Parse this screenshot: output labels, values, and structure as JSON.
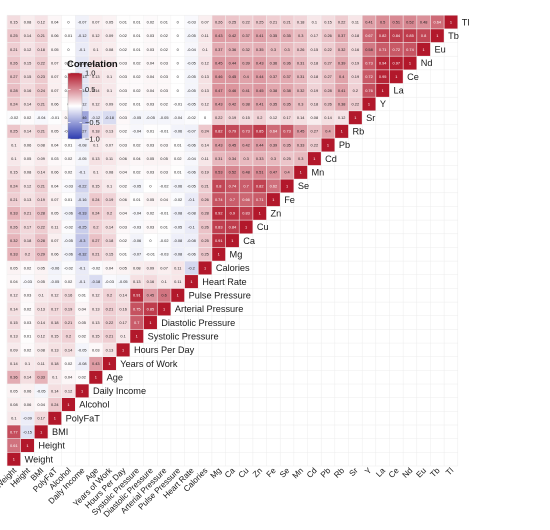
{
  "chart_data": {
    "type": "heatmap",
    "variables": [
      "Weight",
      "Height",
      "BMI",
      "PolyFaT",
      "Alcohol",
      "Daily Income",
      "Age",
      "Years of Work",
      "Hours Per Day",
      "Systolic Pressure",
      "Diastolic Pressure",
      "Arterial Pressure",
      "Pulse Pressure",
      "Heart Rate",
      "Calories",
      "Mg",
      "Ca",
      "Cu",
      "Zn",
      "Fe",
      "Se",
      "Mn",
      "Cd",
      "Pb",
      "Rb",
      "Sr",
      "Y",
      "La",
      "Ce",
      "Nd",
      "Eu",
      "Tb",
      "Tl"
    ],
    "values": [
      [
        1
      ],
      [
        0.61,
        1
      ],
      [
        0.77,
        -0.15,
        1
      ],
      [
        0.1,
        -0.09,
        0.17,
        1
      ],
      [
        0.08,
        0.06,
        0.04,
        0.24,
        1
      ],
      [
        0.05,
        0.06,
        -0.05,
        0.14,
        0.12,
        1
      ],
      [
        0.36,
        0.14,
        0.33,
        0.1,
        0.04,
        0.02,
        1
      ],
      [
        0.14,
        0.1,
        0.11,
        0.18,
        0.02,
        -0.08,
        0.43,
        1
      ],
      [
        0.09,
        0.02,
        0.08,
        0.13,
        0.14,
        -0.05,
        0.03,
        0.13,
        1
      ],
      [
        0.13,
        0.01,
        0.12,
        0.15,
        0.2,
        0.02,
        0.15,
        0.21,
        0.1,
        1
      ],
      [
        0.15,
        0.03,
        0.14,
        0.18,
        0.21,
        0.05,
        0.13,
        0.22,
        0.17,
        0.7,
        1
      ],
      [
        0.14,
        0.02,
        0.13,
        0.17,
        0.19,
        0.04,
        0.13,
        0.21,
        0.16,
        0.75,
        0.85,
        1
      ],
      [
        0.12,
        0.03,
        0.1,
        0.12,
        0.16,
        0.01,
        0.12,
        0.2,
        0.14,
        0.91,
        0.45,
        0.6,
        1
      ],
      [
        0.04,
        -0.03,
        0.05,
        -0.05,
        0.02,
        -0.1,
        -0.18,
        -0.03,
        -0.05,
        0.13,
        0.16,
        0.1,
        0.11,
        1
      ],
      [
        0.05,
        0.02,
        0.05,
        -0.06,
        -0.02,
        -0.1,
        -0.02,
        0.04,
        0.05,
        0.08,
        0.09,
        0.07,
        0.11,
        -0.2,
        1
      ],
      [
        0.33,
        0.2,
        0.29,
        0.06,
        -0.06,
        -0.32,
        0.21,
        0.15,
        0.01,
        -0.07,
        -0.01,
        -0.03,
        -0.08,
        -0.06,
        0.25,
        1
      ],
      [
        0.32,
        0.18,
        0.28,
        0.07,
        -0.05,
        -0.3,
        0.27,
        0.18,
        0.02,
        -0.06,
        0,
        -0.02,
        -0.08,
        -0.08,
        0.25,
        0.91,
        1
      ],
      [
        0.26,
        0.17,
        0.22,
        0.11,
        -0.02,
        -0.25,
        0.2,
        0.14,
        0.03,
        -0.03,
        0.03,
        0.01,
        -0.05,
        -0.1,
        0.26,
        0.83,
        0.84,
        1
      ],
      [
        0.33,
        0.21,
        0.28,
        0.05,
        -0.06,
        -0.33,
        0.24,
        0.2,
        0.04,
        -0.04,
        0.02,
        -0.01,
        -0.08,
        -0.08,
        0.28,
        0.92,
        0.9,
        0.83,
        1
      ],
      [
        0.21,
        0.13,
        0.19,
        0.07,
        0.01,
        -0.16,
        0.24,
        0.19,
        0.06,
        0.01,
        0.05,
        0.04,
        -0.02,
        -0.1,
        0.26,
        0.74,
        0.7,
        0.66,
        0.71,
        1
      ],
      [
        0.24,
        0.12,
        0.21,
        0.04,
        -0.03,
        -0.22,
        0.15,
        0.1,
        0.02,
        -0.05,
        0,
        -0.02,
        -0.06,
        -0.05,
        0.21,
        0.8,
        0.74,
        0.7,
        0.82,
        0.62,
        1
      ],
      [
        0.15,
        0.08,
        0.14,
        0.06,
        0.02,
        -0.1,
        0.1,
        0.08,
        0.04,
        0.02,
        0.03,
        0.03,
        0.01,
        -0.06,
        0.19,
        0.53,
        0.52,
        0.48,
        0.51,
        0.47,
        0.4,
        1
      ],
      [
        0.1,
        0.05,
        0.09,
        0.03,
        0.02,
        -0.05,
        0.13,
        0.11,
        0.06,
        0.04,
        0.05,
        0.05,
        0.02,
        -0.04,
        0.11,
        0.31,
        0.34,
        0.3,
        0.33,
        0.3,
        0.25,
        0.3,
        1
      ],
      [
        0.1,
        0.06,
        0.08,
        0.04,
        0.01,
        -0.08,
        0.1,
        0.07,
        0.03,
        0.02,
        0.03,
        0.03,
        0.01,
        -0.06,
        0.14,
        0.43,
        0.45,
        0.42,
        0.44,
        0.39,
        0.35,
        0.33,
        0.22,
        1
      ],
      [
        0.25,
        0.14,
        0.21,
        0.05,
        -0.04,
        -0.27,
        0.18,
        0.13,
        0.02,
        -0.04,
        0.01,
        -0.01,
        -0.06,
        -0.07,
        0.24,
        0.82,
        0.79,
        0.73,
        0.85,
        0.64,
        0.73,
        0.45,
        0.27,
        0.4,
        1
      ],
      [
        -0.02,
        0.02,
        -0.04,
        -0.01,
        0.04,
        -0.46,
        -0.12,
        -0.18,
        0.03,
        -0.05,
        -0.05,
        -0.05,
        -0.04,
        -0.02,
        0,
        0.22,
        0.19,
        0.15,
        0.2,
        0.12,
        0.17,
        0.14,
        0.08,
        0.14,
        0.12,
        1
      ],
      [
        0.24,
        0.14,
        0.21,
        0.06,
        0,
        -0.12,
        0.12,
        0.09,
        0.02,
        0.01,
        0.03,
        0.02,
        -0.01,
        -0.05,
        0.12,
        0.43,
        0.42,
        0.38,
        0.41,
        0.35,
        0.35,
        0.3,
        0.18,
        0.26,
        0.38,
        0.22,
        1
      ],
      [
        0.28,
        0.16,
        0.24,
        0.07,
        0.01,
        -0.14,
        0.14,
        0.1,
        0.03,
        0.02,
        0.04,
        0.03,
        0,
        -0.05,
        0.13,
        0.47,
        0.46,
        0.41,
        0.45,
        0.38,
        0.38,
        0.32,
        0.19,
        0.28,
        0.41,
        0.2,
        0.76,
        1
      ],
      [
        0.27,
        0.15,
        0.23,
        0.07,
        0.01,
        -0.13,
        0.13,
        0.1,
        0.03,
        0.02,
        0.04,
        0.03,
        0,
        -0.05,
        0.13,
        0.46,
        0.45,
        0.4,
        0.44,
        0.37,
        0.37,
        0.31,
        0.18,
        0.27,
        0.4,
        0.19,
        0.72,
        0.95,
        1
      ],
      [
        0.26,
        0.15,
        0.22,
        0.07,
        0.01,
        -0.13,
        0.13,
        0.1,
        0.03,
        0.02,
        0.04,
        0.03,
        0,
        -0.05,
        0.12,
        0.45,
        0.44,
        0.39,
        0.43,
        0.36,
        0.36,
        0.31,
        0.18,
        0.27,
        0.39,
        0.19,
        0.73,
        0.94,
        0.97,
        1
      ],
      [
        0.21,
        0.12,
        0.18,
        0.05,
        0,
        -0.1,
        0.1,
        0.08,
        0.02,
        0.01,
        0.03,
        0.02,
        0,
        -0.04,
        0.1,
        0.37,
        0.36,
        0.32,
        0.35,
        0.3,
        0.3,
        0.26,
        0.15,
        0.22,
        0.32,
        0.16,
        0.58,
        0.71,
        0.72,
        0.74,
        1
      ],
      [
        0.25,
        0.14,
        0.21,
        0.06,
        0.01,
        -0.12,
        0.12,
        0.09,
        0.02,
        0.01,
        0.03,
        0.02,
        0,
        -0.05,
        0.11,
        0.43,
        0.42,
        0.37,
        0.41,
        0.35,
        0.35,
        0.3,
        0.17,
        0.26,
        0.37,
        0.18,
        0.67,
        0.82,
        0.84,
        0.85,
        0.8,
        1
      ],
      [
        0.15,
        0.08,
        0.12,
        0.04,
        0,
        -0.07,
        0.07,
        0.05,
        0.01,
        0.01,
        0.02,
        0.01,
        0,
        -0.03,
        0.07,
        0.26,
        0.25,
        0.22,
        0.25,
        0.21,
        0.21,
        0.18,
        0.1,
        0.15,
        0.22,
        0.11,
        0.41,
        0.5,
        0.51,
        0.52,
        0.48,
        0.64,
        1
      ]
    ],
    "legend": {
      "title": "Correlation",
      "ticks": [
        1.0,
        0.5,
        0,
        -0.5,
        -1.0
      ],
      "tick_labels": [
        "1.0",
        "0.5",
        "",
        "−0.5",
        "−1.0"
      ],
      "range": [
        -1,
        1
      ],
      "placement": "top-left"
    },
    "colors": {
      "high": "#b2182b",
      "mid": "#ffffff",
      "low": "#2c3bb0",
      "text": "#111111"
    },
    "grid": true,
    "title": "",
    "xlabel": "",
    "ylabel": ""
  }
}
